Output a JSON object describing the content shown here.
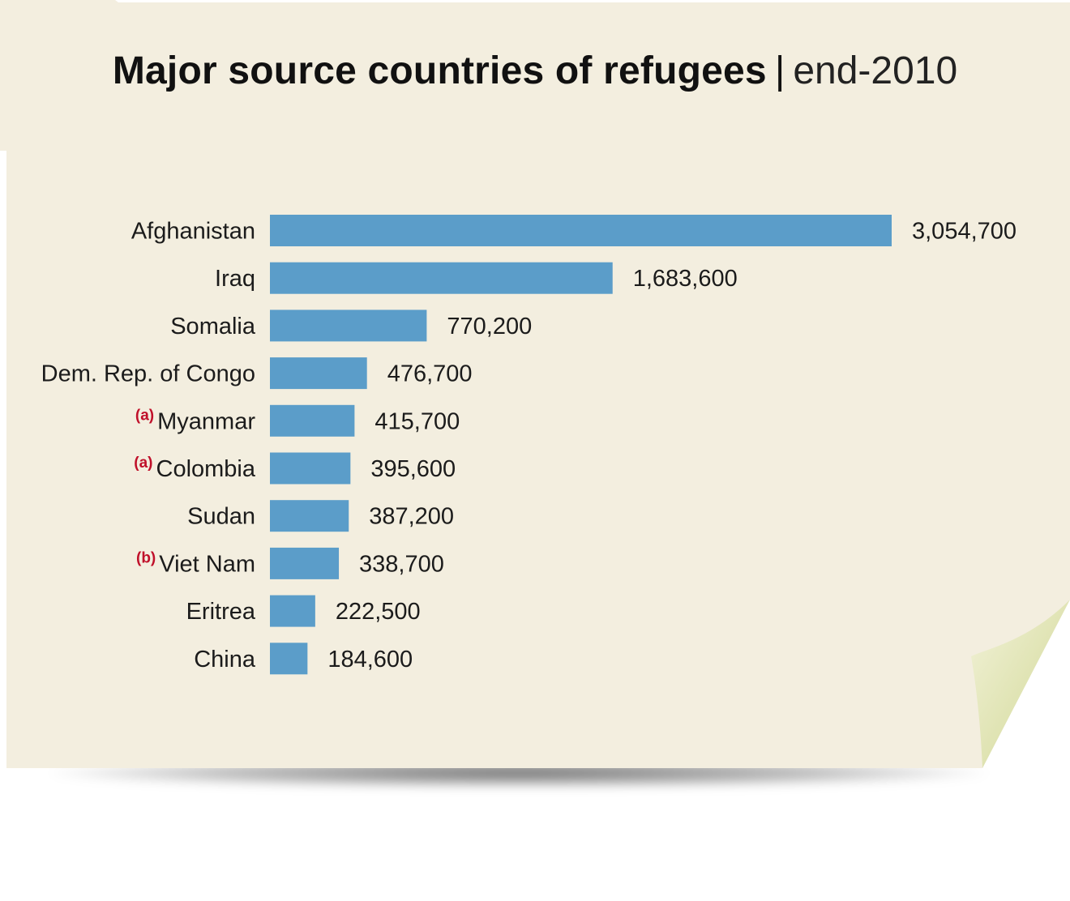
{
  "colors": {
    "background": "#f3eedf",
    "bar": "#5b9dc9",
    "note": "#c0102a",
    "curl_light": "#e6e8c4",
    "curl_dark": "#aebc6e"
  },
  "title": {
    "main": "Major source countries of refugees",
    "separator": "|",
    "sub": "end-2010"
  },
  "chart_data": {
    "type": "bar",
    "orientation": "horizontal",
    "title": "Major source countries of refugees | end-2010",
    "xlabel": "",
    "ylabel": "",
    "grid": false,
    "categories": [
      "Afghanistan",
      "Iraq",
      "Somalia",
      "Dem. Rep. of Congo",
      "Myanmar",
      "Colombia",
      "Sudan",
      "Viet Nam",
      "Eritrea",
      "China"
    ],
    "values": [
      3054700,
      1683600,
      770200,
      476700,
      415700,
      395600,
      387200,
      338700,
      222500,
      184600
    ],
    "value_labels": [
      "3,054,700",
      "1,683,600",
      "770,200",
      "476,700",
      "415,700",
      "395,600",
      "387,200",
      "338,700",
      "222,500",
      "184,600"
    ],
    "notes": [
      "",
      "",
      "",
      "",
      "(a)",
      "(a)",
      "",
      "(b)",
      "",
      ""
    ],
    "xlim": [
      0,
      3054700
    ]
  }
}
